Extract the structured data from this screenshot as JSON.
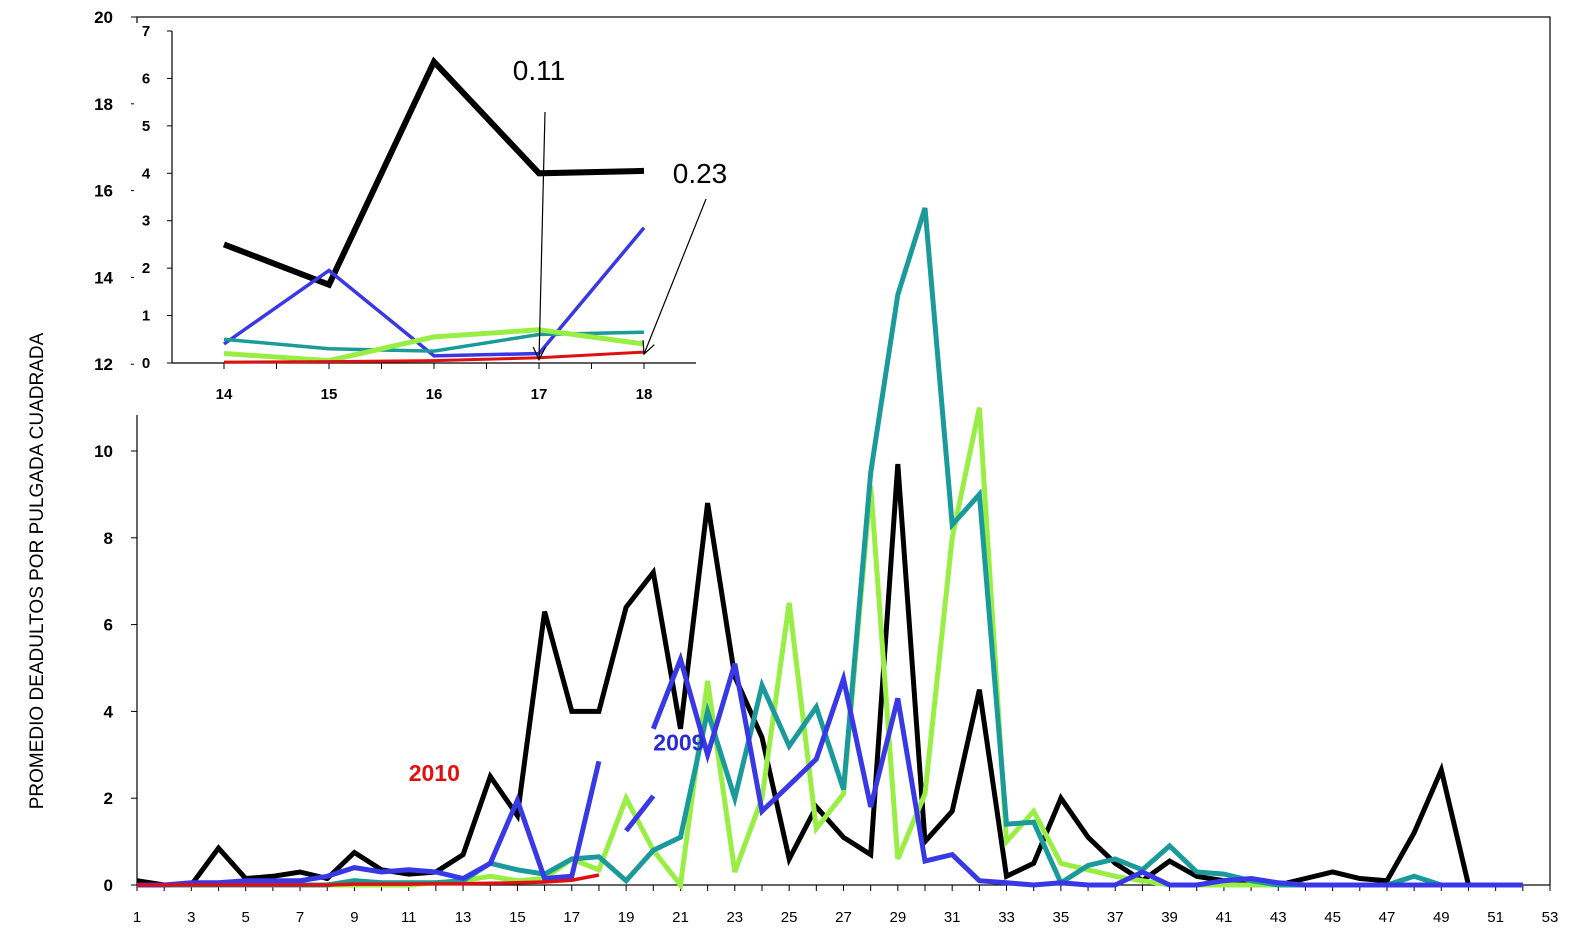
{
  "chart_data": [
    {
      "type": "line",
      "ylabel": "PROMEDIO DEADULTOS POR PULGADA CUADRADA",
      "xlabel": "",
      "xlim": [
        1,
        53
      ],
      "ylim": [
        0,
        20
      ],
      "x_ticks": [
        "1",
        "3",
        "5",
        "7",
        "9",
        "11",
        "13",
        "15",
        "17",
        "19",
        "21",
        "23",
        "25",
        "27",
        "29",
        "31",
        "33",
        "35",
        "37",
        "39",
        "41",
        "43",
        "45",
        "47",
        "49",
        "51",
        "53"
      ],
      "y_ticks": [
        "0",
        "2",
        "4",
        "6",
        "8",
        "10",
        "12",
        "14",
        "16",
        "18",
        "20"
      ],
      "grid": false,
      "colors": {
        "black": "#000000",
        "lightgreen": "#99ee44",
        "teal": "#1a9a9a",
        "blue": "#3838e6",
        "red": "#e01010"
      },
      "labels": [
        {
          "text": "2010",
          "color": "#e01010",
          "x": 11,
          "y": 2.4
        },
        {
          "text": "2009",
          "color": "#2a2ad8",
          "x": 20,
          "y": 3.1
        }
      ],
      "series": [
        {
          "color": "black",
          "x": [
            1,
            2,
            3,
            4,
            5,
            6,
            7,
            8,
            9,
            10,
            11,
            12,
            13,
            14,
            15,
            16,
            17,
            18,
            19,
            20,
            21,
            22,
            23,
            24,
            25,
            26,
            27,
            28,
            29,
            30,
            31,
            32,
            33,
            34,
            35,
            36,
            37,
            38,
            39,
            40,
            41,
            42,
            43,
            44,
            45,
            46,
            47,
            48,
            49,
            50,
            51,
            52
          ],
          "values": [
            0.1,
            0,
            0,
            0.85,
            0.15,
            0.2,
            0.3,
            0.15,
            0.75,
            0.35,
            0.25,
            0.3,
            0.7,
            2.5,
            1.6,
            6.3,
            4,
            4,
            6.4,
            7.2,
            3.6,
            8.8,
            4.8,
            3.4,
            0.6,
            1.8,
            1.1,
            0.7,
            9.7,
            1.0,
            1.7,
            4.5,
            0.2,
            0.5,
            2.0,
            1.1,
            0.5,
            0.1,
            0.55,
            0.2,
            0.1,
            0.1,
            0,
            0.15,
            0.3,
            0.15,
            0.1,
            1.2,
            2.65,
            0,
            0,
            0
          ]
        },
        {
          "color": "lightgreen",
          "x": [
            1,
            2,
            3,
            4,
            5,
            6,
            7,
            8,
            9,
            10,
            11,
            12,
            13,
            14,
            15,
            16,
            17,
            18,
            19,
            20,
            21,
            22,
            23,
            24,
            25,
            26,
            27,
            28,
            29,
            30,
            31,
            32,
            33,
            34,
            35,
            36,
            37,
            38,
            39,
            40,
            41,
            42,
            43,
            44,
            45,
            46,
            47,
            48,
            49,
            50,
            51,
            52
          ],
          "values": [
            0,
            0,
            0,
            0,
            0,
            0,
            0,
            0,
            0,
            0,
            0,
            0.05,
            0.1,
            0.2,
            0.1,
            0.15,
            0.6,
            0.35,
            2.0,
            0.8,
            0,
            4.7,
            0.3,
            2.0,
            6.5,
            1.3,
            2.1,
            9.2,
            0.6,
            2.1,
            8.0,
            11.0,
            1.0,
            1.7,
            0.5,
            0.35,
            0.2,
            0.1,
            0,
            0,
            0,
            0,
            0,
            0,
            0,
            0,
            0,
            0,
            0,
            0,
            0,
            0
          ]
        },
        {
          "color": "teal",
          "x": [
            1,
            2,
            3,
            4,
            5,
            6,
            7,
            8,
            9,
            10,
            11,
            12,
            13,
            14,
            15,
            16,
            17,
            18,
            19,
            20,
            21,
            22,
            23,
            24,
            25,
            26,
            27,
            28,
            29,
            30,
            31,
            32,
            33,
            34,
            35,
            36,
            37,
            38,
            39,
            40,
            41,
            42,
            43,
            44,
            45,
            46,
            47,
            48,
            49,
            50,
            51,
            52
          ],
          "values": [
            0,
            0,
            0,
            0,
            0,
            0,
            0,
            0,
            0.1,
            0.05,
            0.05,
            0.05,
            0.1,
            0.5,
            0.35,
            0.25,
            0.6,
            0.65,
            0.1,
            0.8,
            1.1,
            4.0,
            2.0,
            4.6,
            3.2,
            4.1,
            2.2,
            9.5,
            13.6,
            15.6,
            8.3,
            9.0,
            1.4,
            1.45,
            0.05,
            0.45,
            0.6,
            0.35,
            0.9,
            0.3,
            0.25,
            0.1,
            0,
            0,
            0,
            0,
            0,
            0.2,
            0,
            0,
            0,
            0
          ]
        },
        {
          "color": "blue",
          "x": [
            1,
            2,
            3,
            4,
            5,
            6,
            7,
            8,
            9,
            10,
            11,
            12,
            13,
            14,
            15,
            16,
            17,
            18,
            null,
            19,
            20,
            null,
            20,
            21,
            22,
            23,
            24,
            25,
            26,
            27,
            28,
            29,
            30,
            31,
            32,
            33,
            34,
            35,
            36,
            37,
            38,
            39,
            40,
            41,
            42,
            43,
            44,
            45,
            46,
            47,
            48,
            49,
            50,
            51,
            52
          ],
          "values": [
            0,
            0,
            0.05,
            0.05,
            0.1,
            0.1,
            0.1,
            0.2,
            0.4,
            0.3,
            0.35,
            0.3,
            0.15,
            0.5,
            1.95,
            0.15,
            0.2,
            2.85,
            null,
            1.25,
            2.05,
            null,
            3.6,
            5.2,
            3.0,
            5.1,
            1.7,
            2.3,
            2.9,
            4.75,
            1.8,
            4.3,
            0.55,
            0.7,
            0.1,
            0.05,
            0,
            0.05,
            0,
            0,
            0.3,
            0,
            0,
            0.1,
            0.15,
            0.05,
            0,
            0,
            0,
            0,
            0,
            0,
            0,
            0,
            0
          ]
        },
        {
          "color": "red",
          "x": [
            1,
            2,
            3,
            4,
            5,
            6,
            7,
            8,
            9,
            10,
            11,
            12,
            13,
            14,
            15,
            16,
            17,
            18
          ],
          "values": [
            0,
            0,
            0,
            0,
            0,
            0,
            0,
            0,
            0.02,
            0.02,
            0.02,
            0.03,
            0.03,
            0.04,
            0.05,
            0.07,
            0.11,
            0.23
          ]
        }
      ]
    },
    {
      "type": "line",
      "xlim": [
        14,
        18
      ],
      "ylim": [
        0,
        7
      ],
      "x_ticks": [
        "14",
        "15",
        "16",
        "17",
        "18"
      ],
      "y_ticks": [
        "0",
        "1",
        "2",
        "3",
        "4",
        "5",
        "6",
        "7"
      ],
      "annotations": [
        {
          "text": "0.11",
          "x": 17,
          "y": 0.11
        },
        {
          "text": "0.23",
          "x": 18,
          "y": 0.23
        }
      ],
      "series": [
        {
          "color": "black",
          "x": [
            14,
            15,
            16,
            17,
            18
          ],
          "values": [
            2.5,
            1.65,
            6.35,
            4.0,
            4.05
          ]
        },
        {
          "color": "blue",
          "x": [
            14,
            15,
            16,
            17,
            18
          ],
          "values": [
            0.4,
            1.95,
            0.15,
            0.2,
            2.85
          ]
        },
        {
          "color": "teal",
          "x": [
            14,
            15,
            16,
            17,
            18
          ],
          "values": [
            0.5,
            0.3,
            0.25,
            0.6,
            0.65
          ]
        },
        {
          "color": "lightgreen",
          "x": [
            14,
            15,
            16,
            17,
            18
          ],
          "values": [
            0.2,
            0.05,
            0.55,
            0.7,
            0.4
          ]
        },
        {
          "color": "red",
          "x": [
            14,
            15,
            16,
            17,
            18
          ],
          "values": [
            0.02,
            0.03,
            0.05,
            0.11,
            0.23
          ]
        }
      ]
    }
  ]
}
